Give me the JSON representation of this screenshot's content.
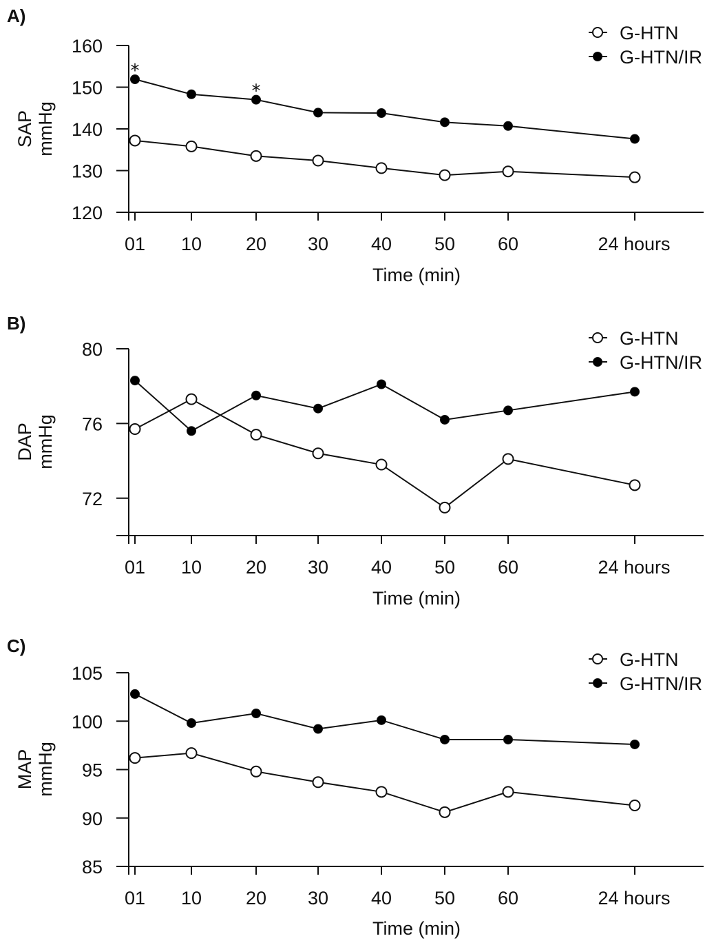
{
  "figure": {
    "legend_position": "top-right",
    "marker_style": {
      "G-HTN": "open-circle",
      "G-HTN/IR": "filled-circle"
    },
    "colors": {
      "line": "#111111",
      "open_fill": "#ffffff",
      "filled_fill": "#000000",
      "background": "#ffffff"
    }
  },
  "chart_data": [
    {
      "type": "line",
      "panel_label": "A)",
      "title": "",
      "ylabel": [
        "SAP",
        "mmHg"
      ],
      "xlabel": "Time (min)",
      "ylim": [
        120,
        160
      ],
      "yticks": [
        120,
        130,
        140,
        150,
        160
      ],
      "categories": [
        "01",
        "10",
        "20",
        "30",
        "40",
        "50",
        "60",
        "24 hours"
      ],
      "grid": false,
      "legend": [
        "G-HTN",
        "G-HTN/IR"
      ],
      "series": [
        {
          "name": "G-HTN",
          "marker": "open",
          "values": [
            137.2,
            135.8,
            133.5,
            132.4,
            130.6,
            128.9,
            129.8,
            128.4
          ]
        },
        {
          "name": "G-HTN/IR",
          "marker": "filled",
          "values": [
            151.9,
            148.3,
            147.0,
            143.9,
            143.8,
            141.6,
            140.7,
            137.6
          ]
        }
      ],
      "annotations": [
        {
          "text": "*",
          "series": "G-HTN/IR",
          "category": "01"
        },
        {
          "text": "*",
          "series": "G-HTN/IR",
          "category": "20"
        }
      ]
    },
    {
      "type": "line",
      "panel_label": "B)",
      "title": "",
      "ylabel": [
        "DAP",
        "mmHg"
      ],
      "xlabel": "Time (min)",
      "ylim": [
        70,
        80
      ],
      "yticks": [
        72,
        76,
        80
      ],
      "categories": [
        "01",
        "10",
        "20",
        "30",
        "40",
        "50",
        "60",
        "24 hours"
      ],
      "grid": false,
      "legend": [
        "G-HTN",
        "G-HTN/IR"
      ],
      "series": [
        {
          "name": "G-HTN",
          "marker": "open",
          "values": [
            75.7,
            77.3,
            75.4,
            74.4,
            73.8,
            71.5,
            74.1,
            72.7
          ]
        },
        {
          "name": "G-HTN/IR",
          "marker": "filled",
          "values": [
            78.3,
            75.6,
            77.5,
            76.8,
            78.1,
            76.2,
            76.7,
            77.7
          ]
        }
      ],
      "annotations": []
    },
    {
      "type": "line",
      "panel_label": "C)",
      "title": "",
      "ylabel": [
        "MAP",
        "mmHg"
      ],
      "xlabel": "Time (min)",
      "ylim": [
        85,
        105
      ],
      "yticks": [
        85,
        90,
        95,
        100,
        105
      ],
      "categories": [
        "01",
        "10",
        "20",
        "30",
        "40",
        "50",
        "60",
        "24 hours"
      ],
      "grid": false,
      "legend": [
        "G-HTN",
        "G-HTN/IR"
      ],
      "series": [
        {
          "name": "G-HTN",
          "marker": "open",
          "values": [
            96.2,
            96.7,
            94.8,
            93.7,
            92.7,
            90.6,
            92.7,
            91.3
          ]
        },
        {
          "name": "G-HTN/IR",
          "marker": "filled",
          "values": [
            102.8,
            99.8,
            100.8,
            99.2,
            100.1,
            98.1,
            98.1,
            97.6
          ]
        }
      ],
      "annotations": []
    }
  ]
}
